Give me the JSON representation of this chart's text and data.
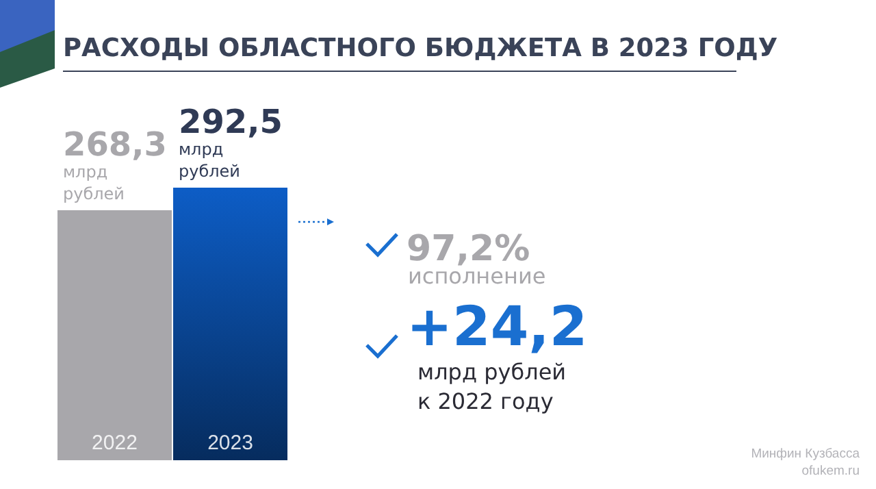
{
  "chart_data": {
    "type": "bar",
    "title": "РАСХОДЫ ОБЛАСТНОГО БЮДЖЕТА В 2023 ГОДУ",
    "categories": [
      "2022",
      "2023"
    ],
    "values": [
      268.3,
      292.5
    ],
    "colors": [
      "#a8a7ab",
      "#0b4ea6"
    ],
    "value_labels": [
      "268,3\nмлрд\nрублей",
      "292,5\nмлрд\nрублей"
    ],
    "annotations": [
      "97,2%",
      "исполнение",
      "+24,2",
      "млрд рублей\nк 2022 году",
      "Минфин Кузбасса\nofukem.ru"
    ]
  }
}
